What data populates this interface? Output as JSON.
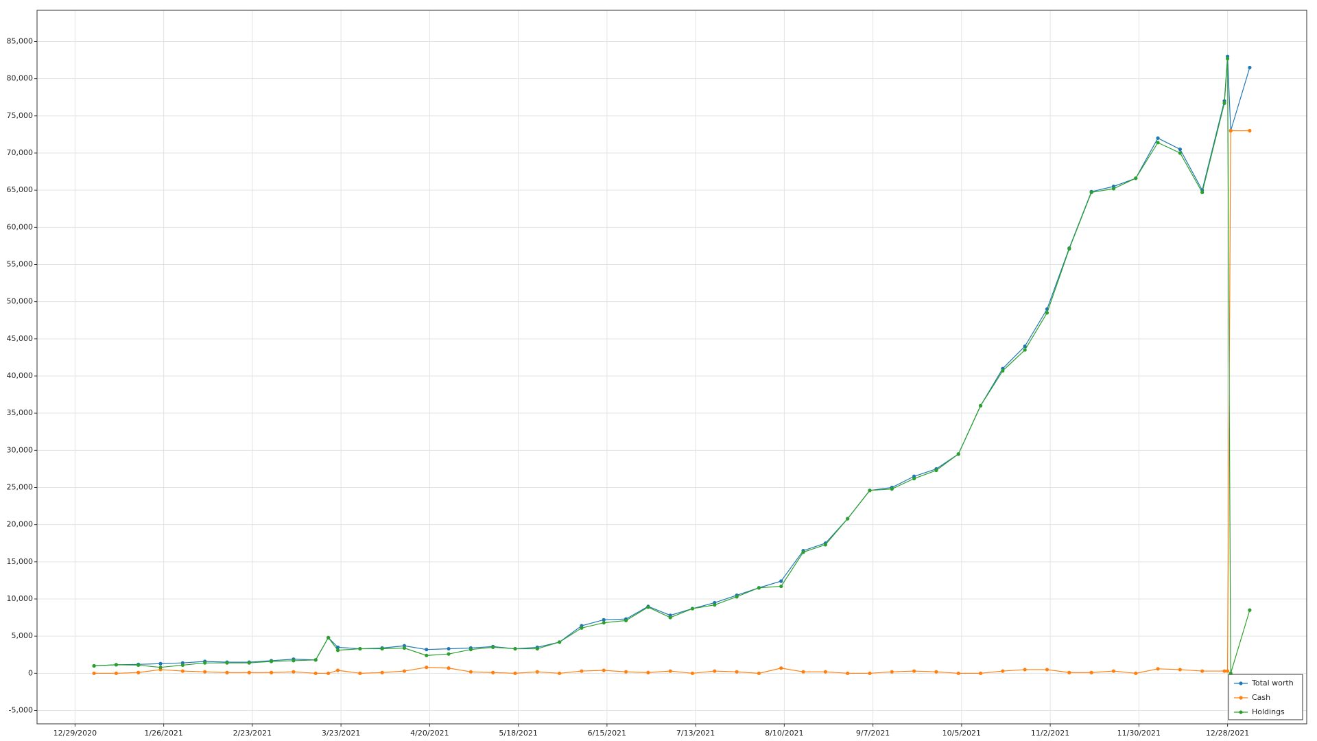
{
  "chart_data": {
    "type": "line",
    "x": [
      "1/4/2021",
      "1/11/2021",
      "1/18/2021",
      "1/25/2021",
      "2/1/2021",
      "2/8/2021",
      "2/15/2021",
      "2/22/2021",
      "3/1/2021",
      "3/8/2021",
      "3/15/2021",
      "3/19/2021",
      "3/22/2021",
      "3/29/2021",
      "4/5/2021",
      "4/12/2021",
      "4/19/2021",
      "4/26/2021",
      "5/3/2021",
      "5/10/2021",
      "5/17/2021",
      "5/24/2021",
      "5/31/2021",
      "6/7/2021",
      "6/14/2021",
      "6/21/2021",
      "6/28/2021",
      "7/5/2021",
      "7/12/2021",
      "7/19/2021",
      "7/26/2021",
      "8/2/2021",
      "8/9/2021",
      "8/16/2021",
      "8/23/2021",
      "8/30/2021",
      "9/6/2021",
      "9/13/2021",
      "9/20/2021",
      "9/27/2021",
      "10/4/2021",
      "10/11/2021",
      "10/18/2021",
      "10/25/2021",
      "11/1/2021",
      "11/8/2021",
      "11/15/2021",
      "11/22/2021",
      "11/29/2021",
      "12/6/2021",
      "12/13/2021",
      "12/20/2021",
      "12/27/2021",
      "12/28/2021",
      "12/29/2021",
      "1/4/2022"
    ],
    "series": [
      {
        "name": "Total worth",
        "color": "#1f77b4",
        "values": [
          1000,
          1150,
          1200,
          1300,
          1400,
          1600,
          1500,
          1500,
          1700,
          1900,
          1800,
          4800,
          3500,
          3300,
          3400,
          3700,
          3200,
          3300,
          3400,
          3600,
          3300,
          3500,
          4200,
          6400,
          7200,
          7300,
          9000,
          7800,
          8700,
          9500,
          10500,
          11500,
          12400,
          16500,
          17500,
          20800,
          24600,
          25000,
          26500,
          27500,
          29500,
          36000,
          41000,
          44000,
          49000,
          57200,
          64800,
          65500,
          66600,
          72000,
          70500,
          65000,
          77000,
          83000,
          73000,
          81500
        ]
      },
      {
        "name": "Cash",
        "color": "#ff7f0e",
        "values": [
          0,
          0,
          100,
          500,
          300,
          200,
          100,
          100,
          100,
          200,
          0,
          0,
          400,
          0,
          100,
          300,
          800,
          700,
          200,
          100,
          0,
          200,
          0,
          300,
          400,
          200,
          100,
          300,
          0,
          300,
          200,
          0,
          700,
          200,
          200,
          0,
          0,
          200,
          300,
          200,
          0,
          0,
          300,
          500,
          500,
          100,
          100,
          300,
          0,
          600,
          500,
          300,
          300,
          300,
          73000,
          73000
        ]
      },
      {
        "name": "Holdings",
        "color": "#2ca02c",
        "values": [
          1000,
          1150,
          1100,
          800,
          1100,
          1400,
          1400,
          1400,
          1600,
          1700,
          1800,
          4800,
          3100,
          3300,
          3300,
          3400,
          2400,
          2600,
          3200,
          3500,
          3300,
          3300,
          4200,
          6100,
          6800,
          7100,
          8900,
          7500,
          8700,
          9200,
          10300,
          11500,
          11700,
          16300,
          17300,
          20800,
          24600,
          24800,
          26200,
          27300,
          29500,
          36000,
          40700,
          43500,
          48500,
          57100,
          64700,
          65200,
          66600,
          71400,
          70000,
          64700,
          76700,
          82700,
          0,
          8500
        ]
      }
    ],
    "xlim": [
      "12/17/2020",
      "1/22/2022"
    ],
    "xticks": [
      "12/29/2020",
      "1/26/2021",
      "2/23/2021",
      "3/23/2021",
      "4/20/2021",
      "5/18/2021",
      "6/15/2021",
      "7/13/2021",
      "8/10/2021",
      "9/7/2021",
      "10/5/2021",
      "11/2/2021",
      "11/30/2021",
      "12/28/2021"
    ],
    "ylim": [
      -6800,
      89200
    ],
    "yticks": [
      {
        "value": -5000,
        "label": "-5,000"
      },
      0,
      {
        "value": 5000,
        "label": "5,000"
      },
      {
        "value": 10000,
        "label": "10,000"
      },
      {
        "value": 15000,
        "label": "15,000"
      },
      {
        "value": 20000,
        "label": "20,000"
      },
      {
        "value": 25000,
        "label": "25,000"
      },
      {
        "value": 30000,
        "label": "30,000"
      },
      {
        "value": 35000,
        "label": "35,000"
      },
      {
        "value": 40000,
        "label": "40,000"
      },
      {
        "value": 45000,
        "label": "45,000"
      },
      {
        "value": 50000,
        "label": "50,000"
      },
      {
        "value": 55000,
        "label": "55,000"
      },
      {
        "value": 60000,
        "label": "60,000"
      },
      {
        "value": 65000,
        "label": "65,000"
      },
      {
        "value": 70000,
        "label": "70,000"
      },
      {
        "value": 75000,
        "label": "75,000"
      },
      {
        "value": 80000,
        "label": "80,000"
      },
      {
        "value": 85000,
        "label": "85,000"
      }
    ],
    "grid": true,
    "legend": "lower right"
  }
}
